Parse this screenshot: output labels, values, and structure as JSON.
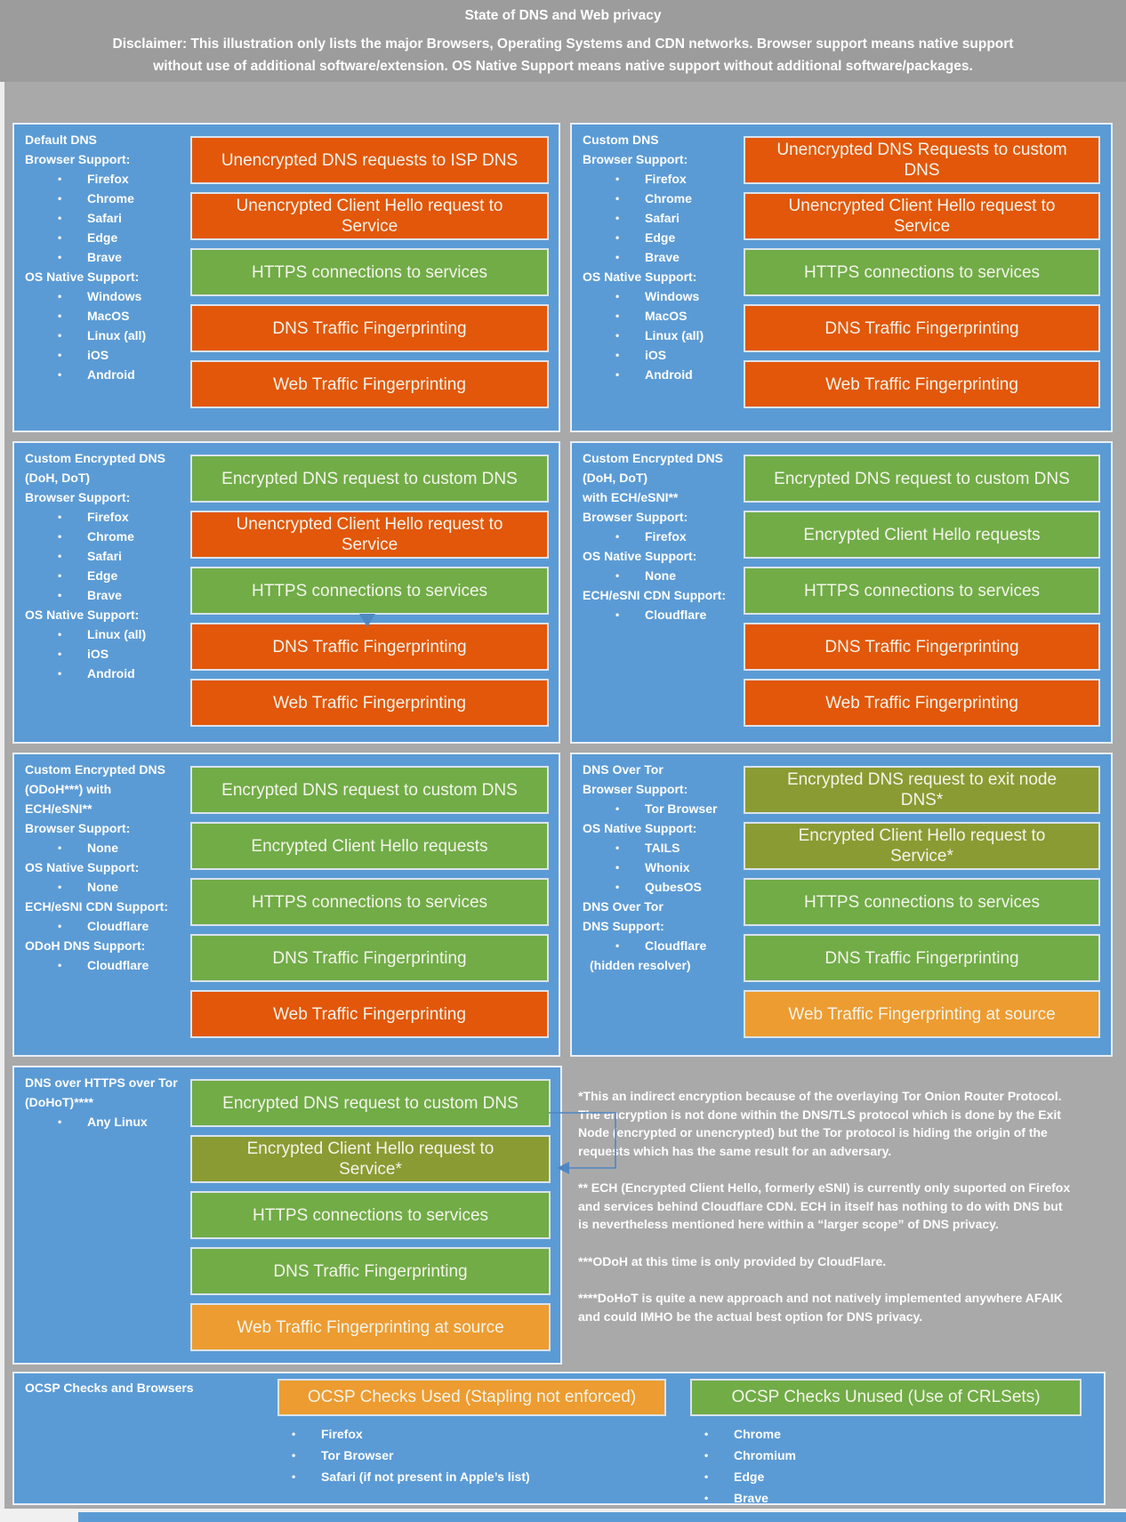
{
  "header": {
    "title": "State of DNS and Web privacy",
    "disclaimer": "Disclaimer: This illustration only lists the major Browsers, Operating Systems and CDN networks. Browser support means native support without use of additional software/extension. OS Native Support means native support without additional software/packages."
  },
  "colors": {
    "panel_blue": "#5B9BD5",
    "background_gray": "#A9A9A9",
    "bad_orange": "#E2570A",
    "good_green": "#71AC47",
    "indirect_olive": "#8B9B33",
    "warn_amber": "#EC9C31"
  },
  "panels": [
    {
      "id": "default-dns",
      "title_lines": [
        "Default DNS"
      ],
      "side": [
        {
          "type": "label",
          "text": "Browser Support:"
        },
        {
          "type": "bullet",
          "text": "Firefox"
        },
        {
          "type": "bullet",
          "text": "Chrome"
        },
        {
          "type": "bullet",
          "text": "Safari"
        },
        {
          "type": "bullet",
          "text": "Edge"
        },
        {
          "type": "bullet",
          "text": "Brave"
        },
        {
          "type": "label",
          "text": "OS Native Support:"
        },
        {
          "type": "bullet",
          "text": "Windows"
        },
        {
          "type": "bullet",
          "text": "MacOS"
        },
        {
          "type": "bullet",
          "text": "Linux (all)"
        },
        {
          "type": "bullet",
          "text": "iOS"
        },
        {
          "type": "bullet",
          "text": "Android"
        }
      ],
      "bars": [
        {
          "status": "bad",
          "text": "Unencrypted DNS requests to ISP DNS"
        },
        {
          "status": "bad",
          "text": "Unencrypted Client Hello request to Service"
        },
        {
          "status": "good",
          "text": "HTTPS connections to services"
        },
        {
          "status": "bad",
          "text": "DNS Traffic Fingerprinting"
        },
        {
          "status": "bad",
          "text": "Web Traffic Fingerprinting"
        }
      ]
    },
    {
      "id": "custom-dns",
      "title_lines": [
        "Custom DNS"
      ],
      "side": [
        {
          "type": "label",
          "text": "Browser Support:"
        },
        {
          "type": "bullet",
          "text": "Firefox"
        },
        {
          "type": "bullet",
          "text": "Chrome"
        },
        {
          "type": "bullet",
          "text": "Safari"
        },
        {
          "type": "bullet",
          "text": "Edge"
        },
        {
          "type": "bullet",
          "text": "Brave"
        },
        {
          "type": "label",
          "text": "OS Native Support:"
        },
        {
          "type": "bullet",
          "text": "Windows"
        },
        {
          "type": "bullet",
          "text": "MacOS"
        },
        {
          "type": "bullet",
          "text": "Linux (all)"
        },
        {
          "type": "bullet",
          "text": "iOS"
        },
        {
          "type": "bullet",
          "text": "Android"
        }
      ],
      "bars": [
        {
          "status": "bad",
          "text": "Unencrypted DNS Requests to custom DNS"
        },
        {
          "status": "bad",
          "text": "Unencrypted Client Hello request to Service"
        },
        {
          "status": "good",
          "text": "HTTPS connections to services"
        },
        {
          "status": "bad",
          "text": "DNS Traffic Fingerprinting"
        },
        {
          "status": "bad",
          "text": "Web Traffic Fingerprinting"
        }
      ]
    },
    {
      "id": "custom-encrypted-dns",
      "title_lines": [
        "Custom Encrypted DNS",
        "(DoH, DoT)"
      ],
      "side": [
        {
          "type": "label",
          "text": "Browser Support:"
        },
        {
          "type": "bullet",
          "text": "Firefox"
        },
        {
          "type": "bullet",
          "text": "Chrome"
        },
        {
          "type": "bullet",
          "text": "Safari"
        },
        {
          "type": "bullet",
          "text": "Edge"
        },
        {
          "type": "bullet",
          "text": "Brave"
        },
        {
          "type": "label",
          "text": "OS Native Support:"
        },
        {
          "type": "bullet",
          "text": "Linux (all)"
        },
        {
          "type": "bullet",
          "text": "iOS"
        },
        {
          "type": "bullet",
          "text": "Android"
        }
      ],
      "bars": [
        {
          "status": "good",
          "text": "Encrypted DNS request to custom DNS"
        },
        {
          "status": "bad",
          "text": "Unencrypted Client Hello request to Service"
        },
        {
          "status": "good",
          "text": "HTTPS connections to services"
        },
        {
          "status": "bad",
          "text": "DNS Traffic Fingerprinting"
        },
        {
          "status": "bad",
          "text": "Web Traffic Fingerprinting"
        }
      ]
    },
    {
      "id": "custom-encrypted-dns-ech",
      "title_lines": [
        "Custom Encrypted DNS",
        "(DoH, DoT)",
        "with ECH/eSNI**"
      ],
      "side": [
        {
          "type": "label",
          "text": "Browser Support:"
        },
        {
          "type": "bullet",
          "text": "Firefox"
        },
        {
          "type": "label",
          "text": "OS Native Support:"
        },
        {
          "type": "bullet",
          "text": "None"
        },
        {
          "type": "label",
          "text": "ECH/eSNI CDN Support:"
        },
        {
          "type": "bullet",
          "text": "Cloudflare"
        }
      ],
      "bars": [
        {
          "status": "good",
          "text": "Encrypted DNS request to custom DNS"
        },
        {
          "status": "good",
          "text": "Encrypted Client Hello requests"
        },
        {
          "status": "good",
          "text": "HTTPS connections to services"
        },
        {
          "status": "bad",
          "text": "DNS Traffic Fingerprinting"
        },
        {
          "status": "bad",
          "text": "Web Traffic Fingerprinting"
        }
      ]
    },
    {
      "id": "custom-encrypted-dns-odoh",
      "title_lines": [
        "Custom Encrypted DNS",
        "(ODoH***) with",
        "ECH/eSNI**"
      ],
      "side": [
        {
          "type": "label",
          "text": "Browser Support:"
        },
        {
          "type": "bullet",
          "text": "None"
        },
        {
          "type": "label",
          "text": "OS Native Support:"
        },
        {
          "type": "bullet",
          "text": "None"
        },
        {
          "type": "label",
          "text": "ECH/eSNI CDN Support:"
        },
        {
          "type": "bullet",
          "text": "Cloudflare"
        },
        {
          "type": "label",
          "text": "ODoH DNS Support:"
        },
        {
          "type": "bullet",
          "text": "Cloudflare"
        }
      ],
      "bars": [
        {
          "status": "good",
          "text": "Encrypted DNS request to custom DNS"
        },
        {
          "status": "good",
          "text": "Encrypted Client Hello requests"
        },
        {
          "status": "good",
          "text": "HTTPS connections to services"
        },
        {
          "status": "good",
          "text": "DNS Traffic Fingerprinting"
        },
        {
          "status": "bad",
          "text": "Web Traffic Fingerprinting"
        }
      ]
    },
    {
      "id": "dns-over-tor",
      "title_lines": [
        "DNS Over Tor"
      ],
      "side": [
        {
          "type": "label",
          "text": "Browser Support:"
        },
        {
          "type": "bullet",
          "text": "Tor Browser"
        },
        {
          "type": "label",
          "text": "OS Native Support:"
        },
        {
          "type": "bullet",
          "text": "TAILS"
        },
        {
          "type": "bullet",
          "text": "Whonix"
        },
        {
          "type": "bullet",
          "text": "QubesOS"
        },
        {
          "type": "label",
          "text": "DNS Over Tor"
        },
        {
          "type": "label",
          "text": "DNS Support:"
        },
        {
          "type": "bullet",
          "text": "Cloudflare"
        },
        {
          "type": "plain",
          "text": "(hidden resolver)"
        }
      ],
      "bars": [
        {
          "status": "indirect",
          "text": "Encrypted DNS request to exit node DNS*"
        },
        {
          "status": "indirect",
          "text": "Encrypted Client Hello request to Service*"
        },
        {
          "status": "good",
          "text": "HTTPS connections to services"
        },
        {
          "status": "good",
          "text": "DNS Traffic Fingerprinting"
        },
        {
          "status": "warn",
          "text": "Web Traffic Fingerprinting at source"
        }
      ]
    },
    {
      "id": "dohot",
      "title_lines": [
        "DNS over HTTPS over Tor",
        "(DoHoT)****"
      ],
      "side": [
        {
          "type": "bullet",
          "text": "Any Linux"
        }
      ],
      "bars": [
        {
          "status": "good",
          "text": "Encrypted DNS request to custom DNS"
        },
        {
          "status": "indirect",
          "text": "Encrypted Client Hello request to Service*"
        },
        {
          "status": "good",
          "text": "HTTPS connections to services"
        },
        {
          "status": "good",
          "text": "DNS Traffic Fingerprinting"
        },
        {
          "status": "warn",
          "text": "Web Traffic Fingerprinting at source"
        }
      ]
    }
  ],
  "footnotes": [
    "*This an indirect encryption because of the overlaying Tor Onion Router Protocol. The encryption is not done within the DNS/TLS protocol which is done by the Exit Node (encrypted or unencrypted) but the Tor protocol is hiding the origin of the requests which has the same result for an adversary.",
    "** ECH (Encrypted Client Hello, formerly eSNI) is currently only suported on Firefox and services behind Cloudflare CDN. ECH in itself has nothing to do with DNS but is nevertheless mentioned here within a “larger scope” of DNS privacy.",
    "***ODoH at this time is only provided by CloudFlare.",
    "****DoHoT is quite a new approach and not natively implemented anywhere AFAIK and could IMHO be the actual best option for DNS privacy."
  ],
  "ocsp": {
    "label": "OCSP Checks and Browsers",
    "groups": [
      {
        "id": "ocsp-used",
        "status": "warn",
        "bar_label": "OCSP Checks Used (Stapling not enforced)",
        "items": [
          "Firefox",
          "Tor Browser",
          "Safari (if not present in Apple’s list)"
        ]
      },
      {
        "id": "ocsp-unused",
        "status": "good",
        "bar_label": "OCSP Checks Unused (Use of CRLSets)",
        "items": [
          "Chrome",
          "Chromium",
          "Edge",
          "Brave"
        ]
      }
    ]
  }
}
